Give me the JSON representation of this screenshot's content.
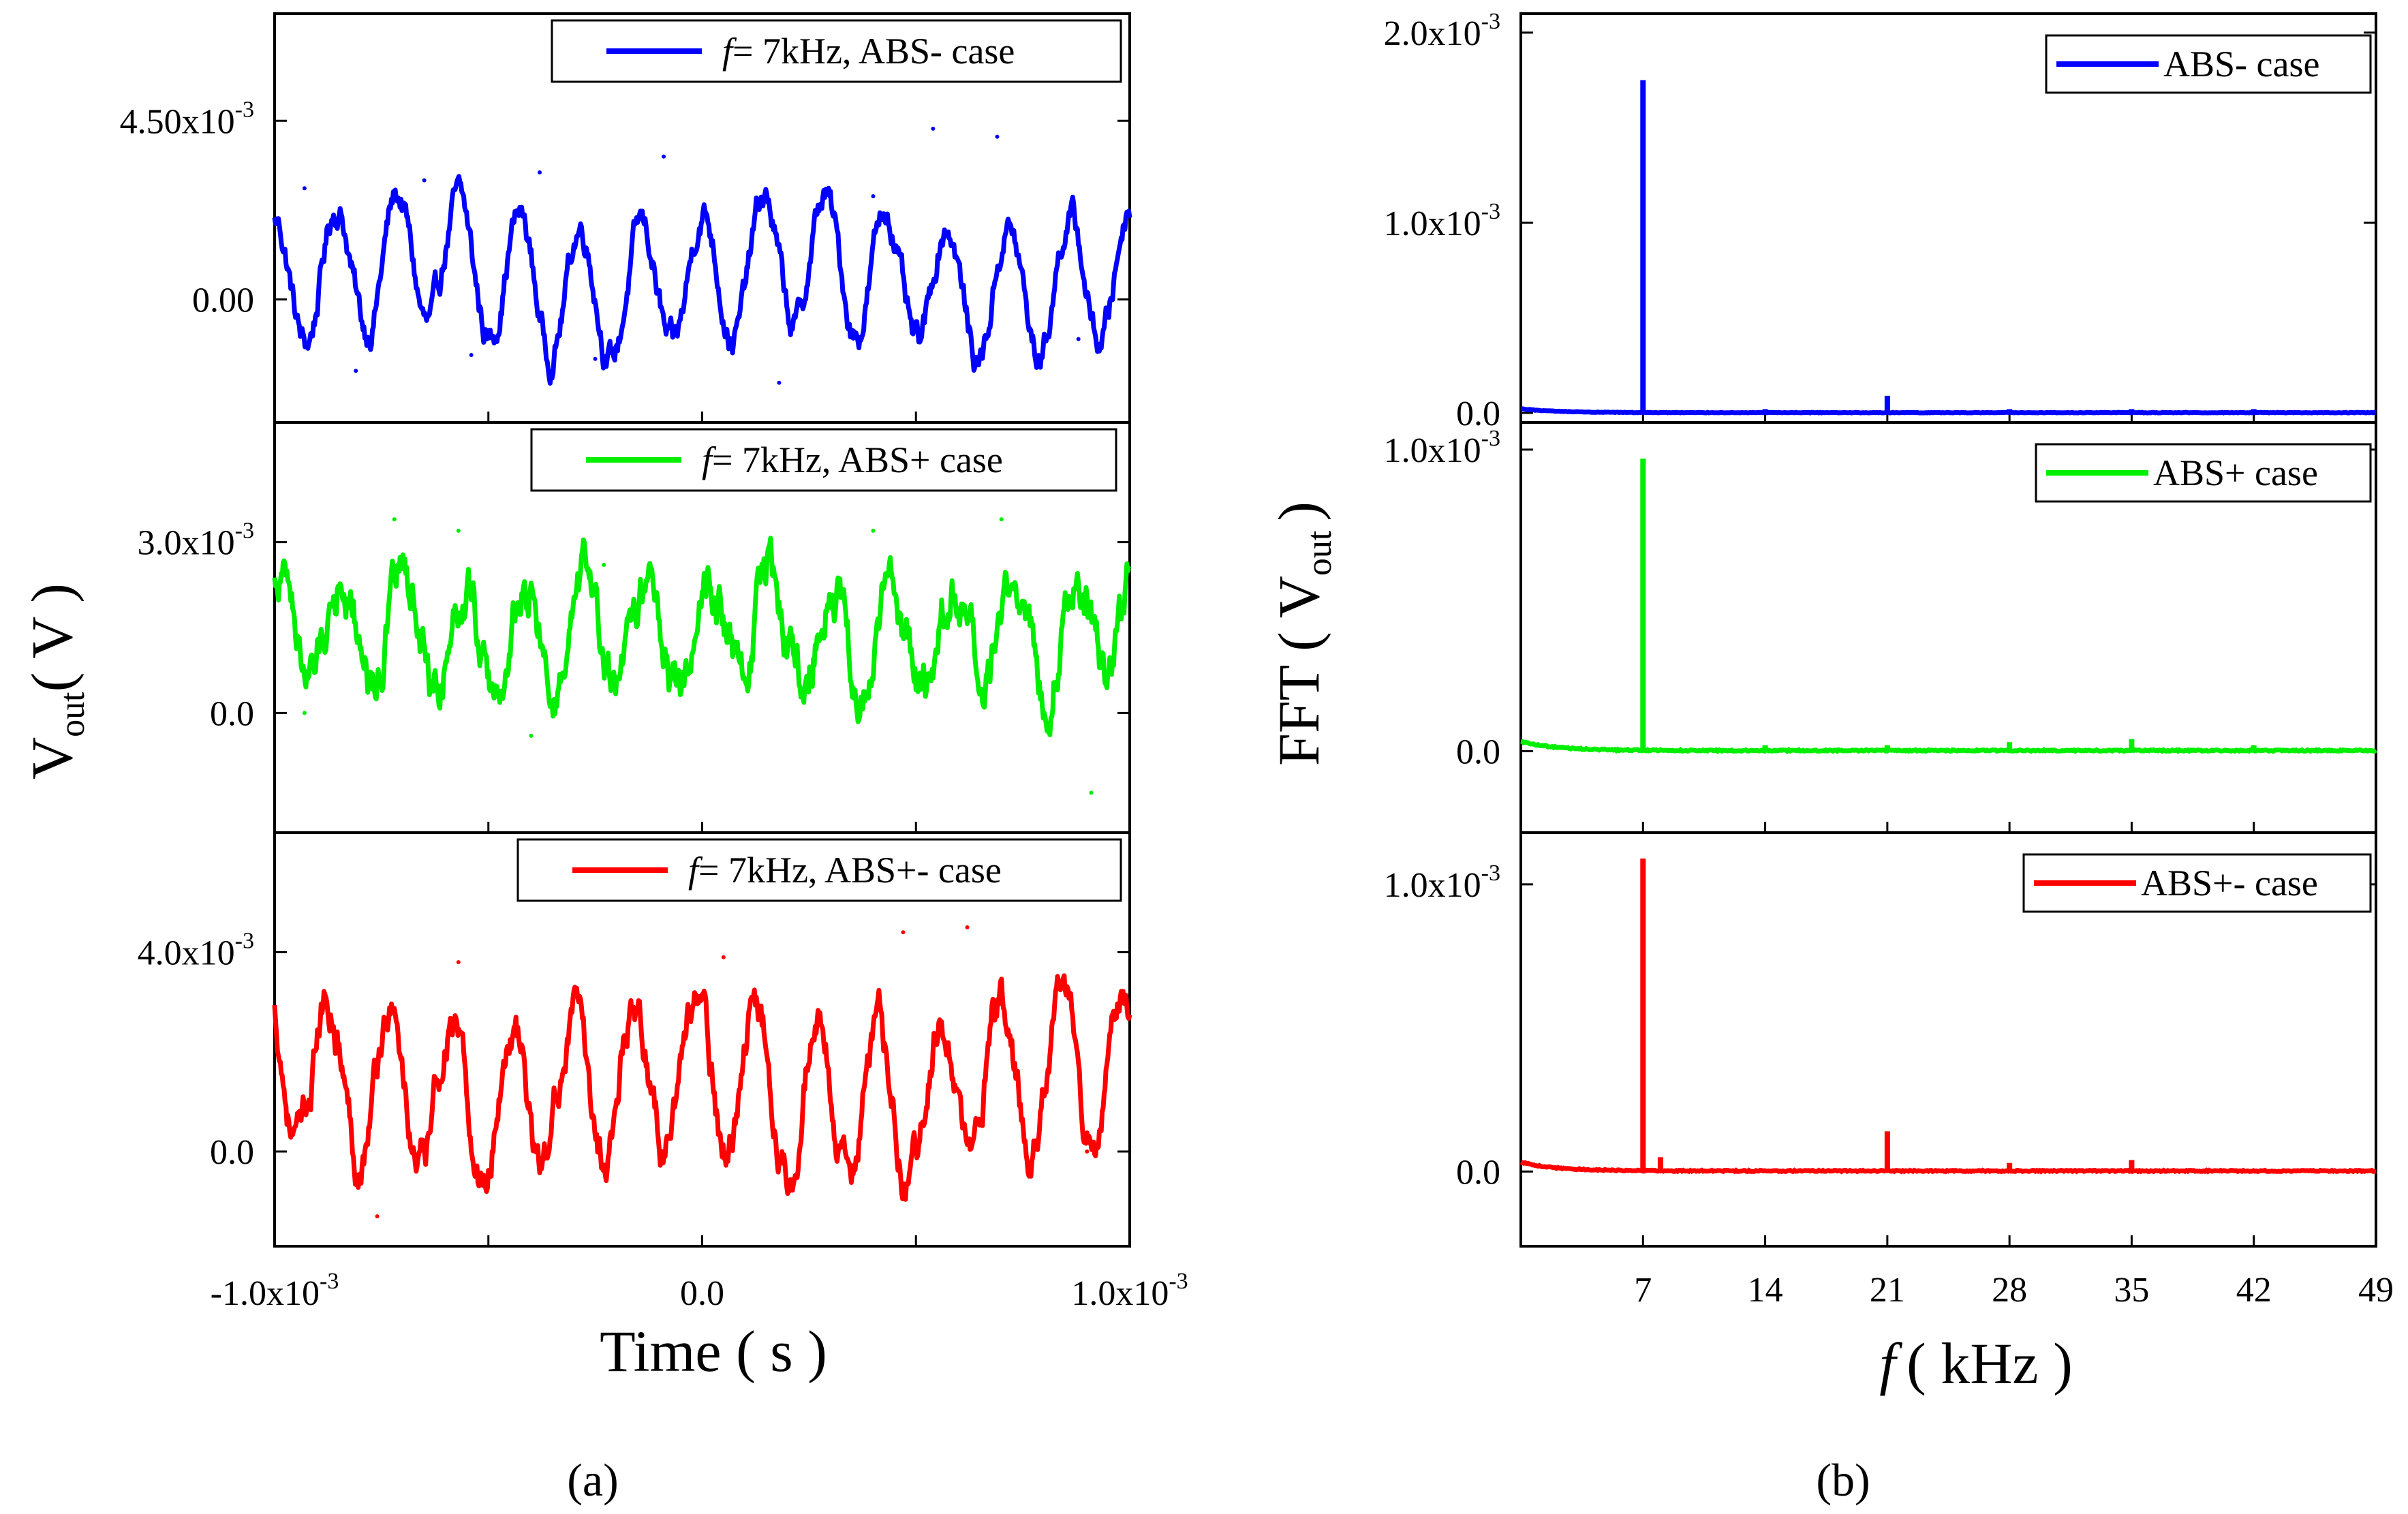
{
  "chart_data": [
    {
      "panel": "a",
      "type": "line",
      "caption": "(a)",
      "xlabel": "Time ( s )",
      "ylabel": "V",
      "ylabel_sub": "out",
      "ylabel_unit": "( V )",
      "xlim": [
        -0.001,
        0.001
      ],
      "x_ticks": [
        {
          "base": "-1.0x10",
          "exp": "-3"
        },
        {
          "base": "0.0",
          "exp": ""
        },
        {
          "base": "1.0x10",
          "exp": "-3"
        }
      ],
      "subplots": [
        {
          "legend": {
            "prefix": "f",
            "label": "= 7kHz, ABS- case",
            "position": "top-right"
          },
          "color": "#0000ff",
          "ylim": [
            -0.0031,
            0.0072
          ],
          "y_ticks": [
            {
              "value": 0.0,
              "base": "0.00",
              "exp": ""
            },
            {
              "value": 0.0045,
              "base": "4.50x10",
              "exp": "-3"
            }
          ],
          "signal": {
            "freq_khz": 7,
            "amplitude": 0.00165,
            "offset": 0.00055,
            "phase": 1.5,
            "noise": 0.00025
          },
          "markers": [
            {
              "t": -0.00093,
              "v": 0.0028
            },
            {
              "t": -0.00081,
              "v": -0.0018
            },
            {
              "t": -0.00065,
              "v": 0.003
            },
            {
              "t": -0.00054,
              "v": -0.0014
            },
            {
              "t": -0.00038,
              "v": 0.0032
            },
            {
              "t": -0.00025,
              "v": -0.0015
            },
            {
              "t": -9e-05,
              "v": 0.0036
            },
            {
              "t": 0.00018,
              "v": -0.0021
            },
            {
              "t": 0.0004,
              "v": 0.0026
            },
            {
              "t": 0.00054,
              "v": 0.0043
            },
            {
              "t": 0.00069,
              "v": 0.0041
            },
            {
              "t": 0.00088,
              "v": -0.001
            }
          ]
        },
        {
          "legend": {
            "prefix": "f",
            "label": "= 7kHz, ABS+ case",
            "position": "top-right"
          },
          "color": "#00ee00",
          "ylim": [
            -0.0021,
            0.0051
          ],
          "y_ticks": [
            {
              "value": 0.0,
              "base": "0.0",
              "exp": ""
            },
            {
              "value": 0.003,
              "base": "3.0x10",
              "exp": "-3"
            }
          ],
          "signal": {
            "freq_khz": 7,
            "amplitude": 0.00095,
            "offset": 0.0014,
            "phase": 0.9,
            "noise": 0.0003
          },
          "markers": [
            {
              "t": -0.00093,
              "v": 0.0
            },
            {
              "t": -0.00072,
              "v": 0.0034
            },
            {
              "t": -0.00057,
              "v": 0.0032
            },
            {
              "t": -0.0004,
              "v": -0.0004
            },
            {
              "t": -0.00023,
              "v": 0.0026
            },
            {
              "t": 0.0004,
              "v": 0.0032
            },
            {
              "t": 0.0007,
              "v": 0.0034
            },
            {
              "t": 0.00091,
              "v": -0.0014
            }
          ]
        },
        {
          "legend": {
            "prefix": "f",
            "label": "= 7kHz, ABS+- case",
            "position": "top-right"
          },
          "color": "#ff0000",
          "ylim": [
            -0.0019,
            0.0064
          ],
          "y_ticks": [
            {
              "value": 0.0,
              "base": "0.0",
              "exp": ""
            },
            {
              "value": 0.004,
              "base": "4.0x10",
              "exp": "-3"
            }
          ],
          "signal": {
            "freq_khz": 7,
            "amplitude": 0.0015,
            "offset": 0.0013,
            "phase": 2.3,
            "noise": 0.00028
          },
          "markers": [
            {
              "t": -0.00076,
              "v": -0.0013
            },
            {
              "t": -0.00057,
              "v": 0.0038
            },
            {
              "t": 5e-05,
              "v": 0.0039
            },
            {
              "t": 0.00047,
              "v": 0.0044
            },
            {
              "t": 0.00062,
              "v": 0.0045
            },
            {
              "t": 0.0009,
              "v": 0.0
            }
          ]
        }
      ]
    },
    {
      "panel": "b",
      "type": "line",
      "caption": "(b)",
      "xlabel_prefix": "f",
      "xlabel": "( kHz )",
      "ylabel": "FFT ( V",
      "ylabel_sub": "out",
      "ylabel_close": ")",
      "xlim": [
        0,
        49
      ],
      "x_ticks": [
        7,
        14,
        21,
        28,
        35,
        42,
        49
      ],
      "subplots": [
        {
          "legend": {
            "label": "ABS- case",
            "position": "top-right"
          },
          "color": "#0000ff",
          "ylim": [
            -5e-05,
            0.0021
          ],
          "y_ticks": [
            {
              "value": 0.0,
              "base": "0.0",
              "exp": ""
            },
            {
              "value": 0.001,
              "base": "1.0x10",
              "exp": "-3"
            },
            {
              "value": 0.002,
              "base": "2.0x10",
              "exp": "-3"
            }
          ],
          "peaks": [
            {
              "f": 7,
              "amp": 0.00175
            },
            {
              "f": 21,
              "amp": 9e-05
            },
            {
              "f": 14,
              "amp": 2e-05
            },
            {
              "f": 28,
              "amp": 2e-05
            },
            {
              "f": 35,
              "amp": 2e-05
            },
            {
              "f": 42,
              "amp": 2e-05
            }
          ],
          "baseline": 2e-05
        },
        {
          "legend": {
            "label": "ABS+ case",
            "position": "top-right"
          },
          "color": "#00ee00",
          "ylim": [
            -0.00027,
            0.00109
          ],
          "y_ticks": [
            {
              "value": 0.0,
              "base": "0.0",
              "exp": ""
            },
            {
              "value": 0.001,
              "base": "1.0x10",
              "exp": "-3"
            }
          ],
          "peaks": [
            {
              "f": 7,
              "amp": 0.00097
            },
            {
              "f": 28,
              "amp": 3e-05
            },
            {
              "f": 35,
              "amp": 4e-05
            },
            {
              "f": 14,
              "amp": 2e-05
            },
            {
              "f": 21,
              "amp": 2e-05
            },
            {
              "f": 42,
              "amp": 2e-05
            }
          ],
          "baseline": 3e-05
        },
        {
          "legend": {
            "label": "ABS+- case",
            "position": "top-right"
          },
          "color": "#ff0000",
          "ylim": [
            -0.00026,
            0.00118
          ],
          "y_ticks": [
            {
              "value": 0.0,
              "base": "0.0",
              "exp": ""
            },
            {
              "value": 0.001,
              "base": "1.0x10",
              "exp": "-3"
            }
          ],
          "peaks": [
            {
              "f": 7,
              "amp": 0.00109
            },
            {
              "f": 21,
              "amp": 0.00014
            },
            {
              "f": 28,
              "amp": 3e-05
            },
            {
              "f": 35,
              "amp": 4e-05
            },
            {
              "f": 8,
              "amp": 5e-05
            }
          ],
          "baseline": 3e-05
        }
      ]
    }
  ]
}
